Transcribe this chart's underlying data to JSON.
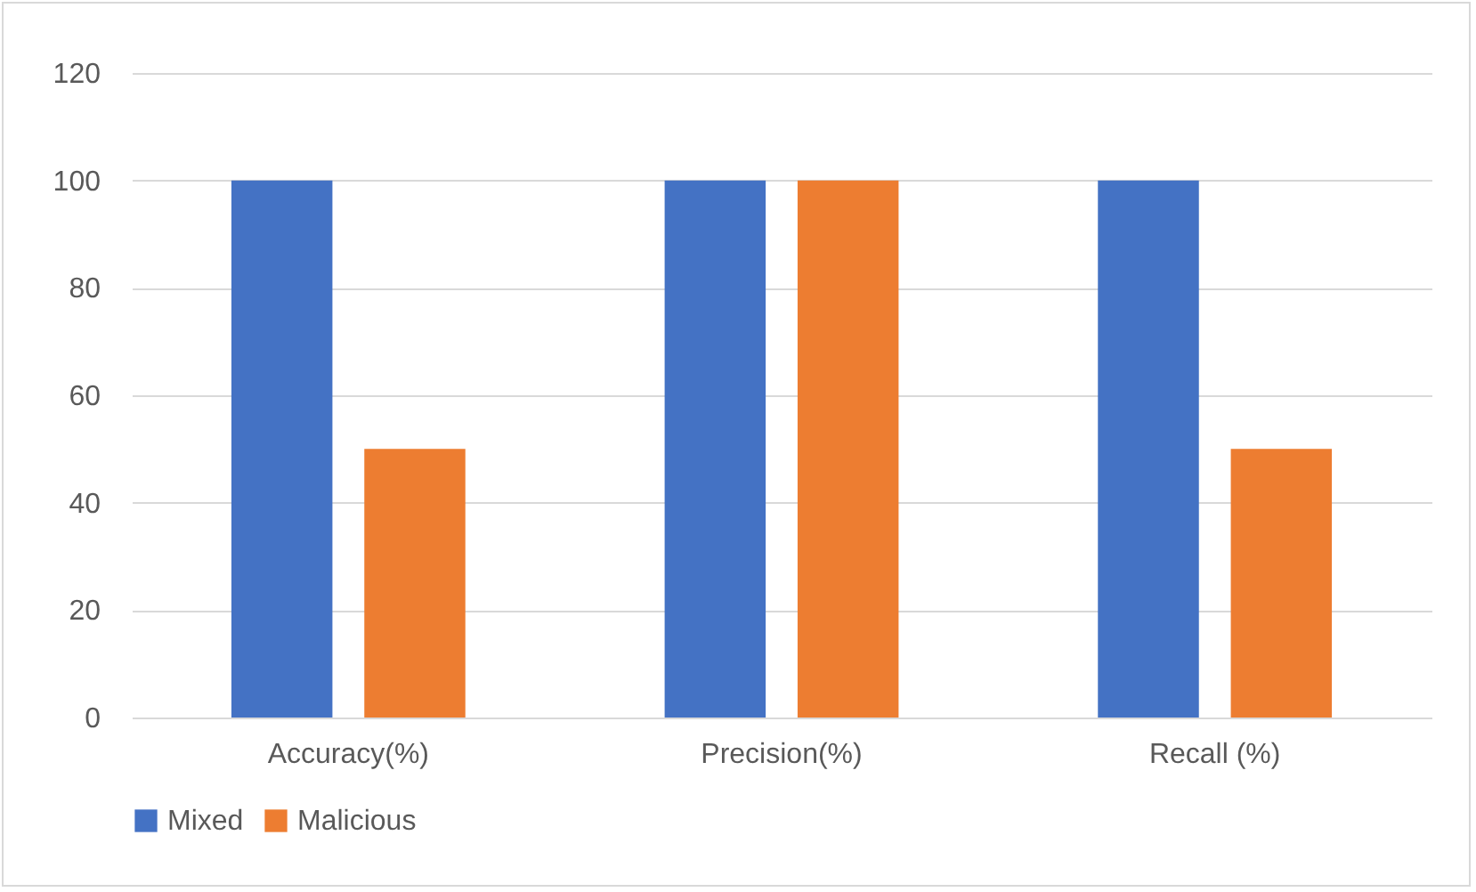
{
  "chart_data": {
    "type": "bar",
    "categories": [
      "Accuracy(%)",
      "Precision(%)",
      "Recall (%)"
    ],
    "series": [
      {
        "name": "Mixed",
        "color": "#4472c4",
        "values": [
          100,
          100,
          100
        ]
      },
      {
        "name": "Malicious",
        "color": "#ed7d31",
        "values": [
          50,
          100,
          50
        ]
      }
    ],
    "ylim": [
      0,
      120
    ],
    "yticks": [
      0,
      20,
      40,
      60,
      80,
      100,
      120
    ],
    "grid": "y",
    "legend": "bottom"
  }
}
